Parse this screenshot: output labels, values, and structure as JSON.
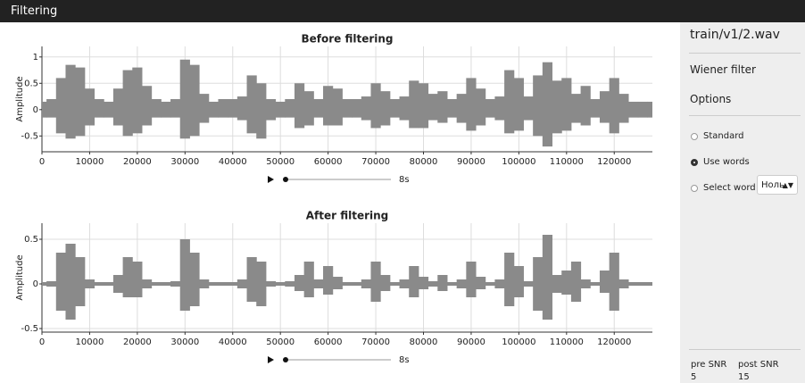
{
  "header": {
    "title": "Filtering"
  },
  "chart_data": [
    {
      "type": "waveform",
      "title": "Before filtering",
      "ylabel": "Amplitude",
      "color": "#8a8a8a",
      "grid": true,
      "x": [
        0,
        2000,
        4000,
        6000,
        8000,
        10000,
        12000,
        14000,
        16000,
        18000,
        20000,
        22000,
        24000,
        26000,
        28000,
        30000,
        32000,
        34000,
        36000,
        38000,
        40000,
        42000,
        44000,
        46000,
        48000,
        50000,
        52000,
        54000,
        56000,
        58000,
        60000,
        62000,
        64000,
        66000,
        68000,
        70000,
        72000,
        74000,
        76000,
        78000,
        80000,
        82000,
        84000,
        86000,
        88000,
        90000,
        92000,
        94000,
        96000,
        98000,
        100000,
        102000,
        104000,
        106000,
        108000,
        110000,
        112000,
        114000,
        116000,
        118000,
        120000,
        122000,
        124000,
        126000,
        128000
      ],
      "series": [
        {
          "color": "#8a8a8a",
          "values": [
            0.15,
            0.2,
            0.6,
            0.85,
            0.8,
            0.4,
            0.2,
            0.15,
            0.4,
            0.75,
            0.8,
            0.45,
            0.2,
            0.15,
            0.2,
            0.95,
            0.85,
            0.3,
            0.15,
            0.2,
            0.2,
            0.25,
            0.65,
            0.5,
            0.2,
            0.15,
            0.2,
            0.5,
            0.35,
            0.2,
            0.45,
            0.4,
            0.2,
            0.2,
            0.25,
            0.5,
            0.35,
            0.2,
            0.25,
            0.55,
            0.5,
            0.3,
            0.35,
            0.2,
            0.3,
            0.6,
            0.4,
            0.2,
            0.25,
            0.75,
            0.6,
            0.25,
            0.65,
            0.9,
            0.55,
            0.6,
            0.3,
            0.45,
            0.2,
            0.35,
            0.6,
            0.3,
            0.15,
            0.15,
            0.15
          ]
        },
        {
          "color": "#8a8a8a",
          "values": [
            -0.15,
            -0.15,
            -0.45,
            -0.55,
            -0.5,
            -0.3,
            -0.15,
            -0.15,
            -0.3,
            -0.5,
            -0.45,
            -0.3,
            -0.15,
            -0.15,
            -0.15,
            -0.55,
            -0.5,
            -0.25,
            -0.15,
            -0.15,
            -0.15,
            -0.2,
            -0.45,
            -0.55,
            -0.2,
            -0.15,
            -0.15,
            -0.35,
            -0.3,
            -0.15,
            -0.3,
            -0.3,
            -0.15,
            -0.15,
            -0.2,
            -0.35,
            -0.3,
            -0.15,
            -0.2,
            -0.35,
            -0.35,
            -0.2,
            -0.25,
            -0.15,
            -0.25,
            -0.4,
            -0.3,
            -0.15,
            -0.2,
            -0.45,
            -0.4,
            -0.2,
            -0.5,
            -0.7,
            -0.45,
            -0.4,
            -0.25,
            -0.3,
            -0.15,
            -0.25,
            -0.45,
            -0.25,
            -0.15,
            -0.15,
            -0.15
          ]
        }
      ],
      "xlim": [
        0,
        128000
      ],
      "xticks": [
        0,
        10000,
        20000,
        30000,
        40000,
        50000,
        60000,
        70000,
        80000,
        90000,
        100000,
        110000,
        120000
      ],
      "ylim": [
        -0.8,
        1.2
      ],
      "yticks": [
        -0.5,
        0,
        0.5,
        1
      ]
    },
    {
      "type": "waveform",
      "title": "After filtering",
      "ylabel": "Amplitude",
      "color": "#8a8a8a",
      "grid": true,
      "x": [
        0,
        2000,
        4000,
        6000,
        8000,
        10000,
        12000,
        14000,
        16000,
        18000,
        20000,
        22000,
        24000,
        26000,
        28000,
        30000,
        32000,
        34000,
        36000,
        38000,
        40000,
        42000,
        44000,
        46000,
        48000,
        50000,
        52000,
        54000,
        56000,
        58000,
        60000,
        62000,
        64000,
        66000,
        68000,
        70000,
        72000,
        74000,
        76000,
        78000,
        80000,
        82000,
        84000,
        86000,
        88000,
        90000,
        92000,
        94000,
        96000,
        98000,
        100000,
        102000,
        104000,
        106000,
        108000,
        110000,
        112000,
        114000,
        116000,
        118000,
        120000,
        122000,
        124000,
        126000,
        128000
      ],
      "series": [
        {
          "color": "#8a8a8a",
          "values": [
            0.02,
            0.03,
            0.35,
            0.45,
            0.3,
            0.05,
            0.02,
            0.02,
            0.1,
            0.3,
            0.25,
            0.05,
            0.02,
            0.02,
            0.03,
            0.5,
            0.35,
            0.05,
            0.02,
            0.02,
            0.02,
            0.05,
            0.3,
            0.25,
            0.03,
            0.02,
            0.03,
            0.1,
            0.25,
            0.05,
            0.2,
            0.08,
            0.02,
            0.02,
            0.05,
            0.25,
            0.1,
            0.02,
            0.05,
            0.2,
            0.08,
            0.03,
            0.1,
            0.02,
            0.05,
            0.25,
            0.08,
            0.02,
            0.05,
            0.35,
            0.2,
            0.03,
            0.3,
            0.55,
            0.1,
            0.15,
            0.25,
            0.05,
            0.02,
            0.15,
            0.35,
            0.05,
            0.02,
            0.02,
            0.02
          ]
        },
        {
          "color": "#8a8a8a",
          "values": [
            -0.02,
            -0.03,
            -0.3,
            -0.4,
            -0.25,
            -0.05,
            -0.02,
            -0.02,
            -0.1,
            -0.15,
            -0.15,
            -0.05,
            -0.02,
            -0.02,
            -0.03,
            -0.3,
            -0.25,
            -0.05,
            -0.02,
            -0.02,
            -0.02,
            -0.05,
            -0.2,
            -0.25,
            -0.03,
            -0.02,
            -0.03,
            -0.08,
            -0.15,
            -0.05,
            -0.12,
            -0.06,
            -0.02,
            -0.02,
            -0.05,
            -0.2,
            -0.08,
            -0.02,
            -0.05,
            -0.15,
            -0.06,
            -0.03,
            -0.08,
            -0.02,
            -0.05,
            -0.15,
            -0.06,
            -0.02,
            -0.05,
            -0.25,
            -0.15,
            -0.03,
            -0.3,
            -0.4,
            -0.1,
            -0.12,
            -0.2,
            -0.05,
            -0.02,
            -0.1,
            -0.3,
            -0.05,
            -0.02,
            -0.02,
            -0.02
          ]
        }
      ],
      "xlim": [
        0,
        128000
      ],
      "xticks": [
        0,
        10000,
        20000,
        30000,
        40000,
        50000,
        60000,
        70000,
        80000,
        90000,
        100000,
        110000,
        120000
      ],
      "ylim": [
        -0.54,
        0.68
      ],
      "yticks": [
        -0.5,
        0,
        0.5
      ]
    }
  ],
  "players": [
    {
      "duration": "8s"
    },
    {
      "duration": "8s"
    }
  ],
  "sidebar": {
    "file": "train/v1/2.wav",
    "method": "Wiener filter",
    "options_title": "Options",
    "options": [
      "Standard",
      "Use words",
      "Select word"
    ],
    "selected_option": "Use words",
    "word": "Ноль",
    "metrics": [
      {
        "label": "pre SNR",
        "value": 5
      },
      {
        "label": "post SNR",
        "value": 15
      }
    ]
  }
}
